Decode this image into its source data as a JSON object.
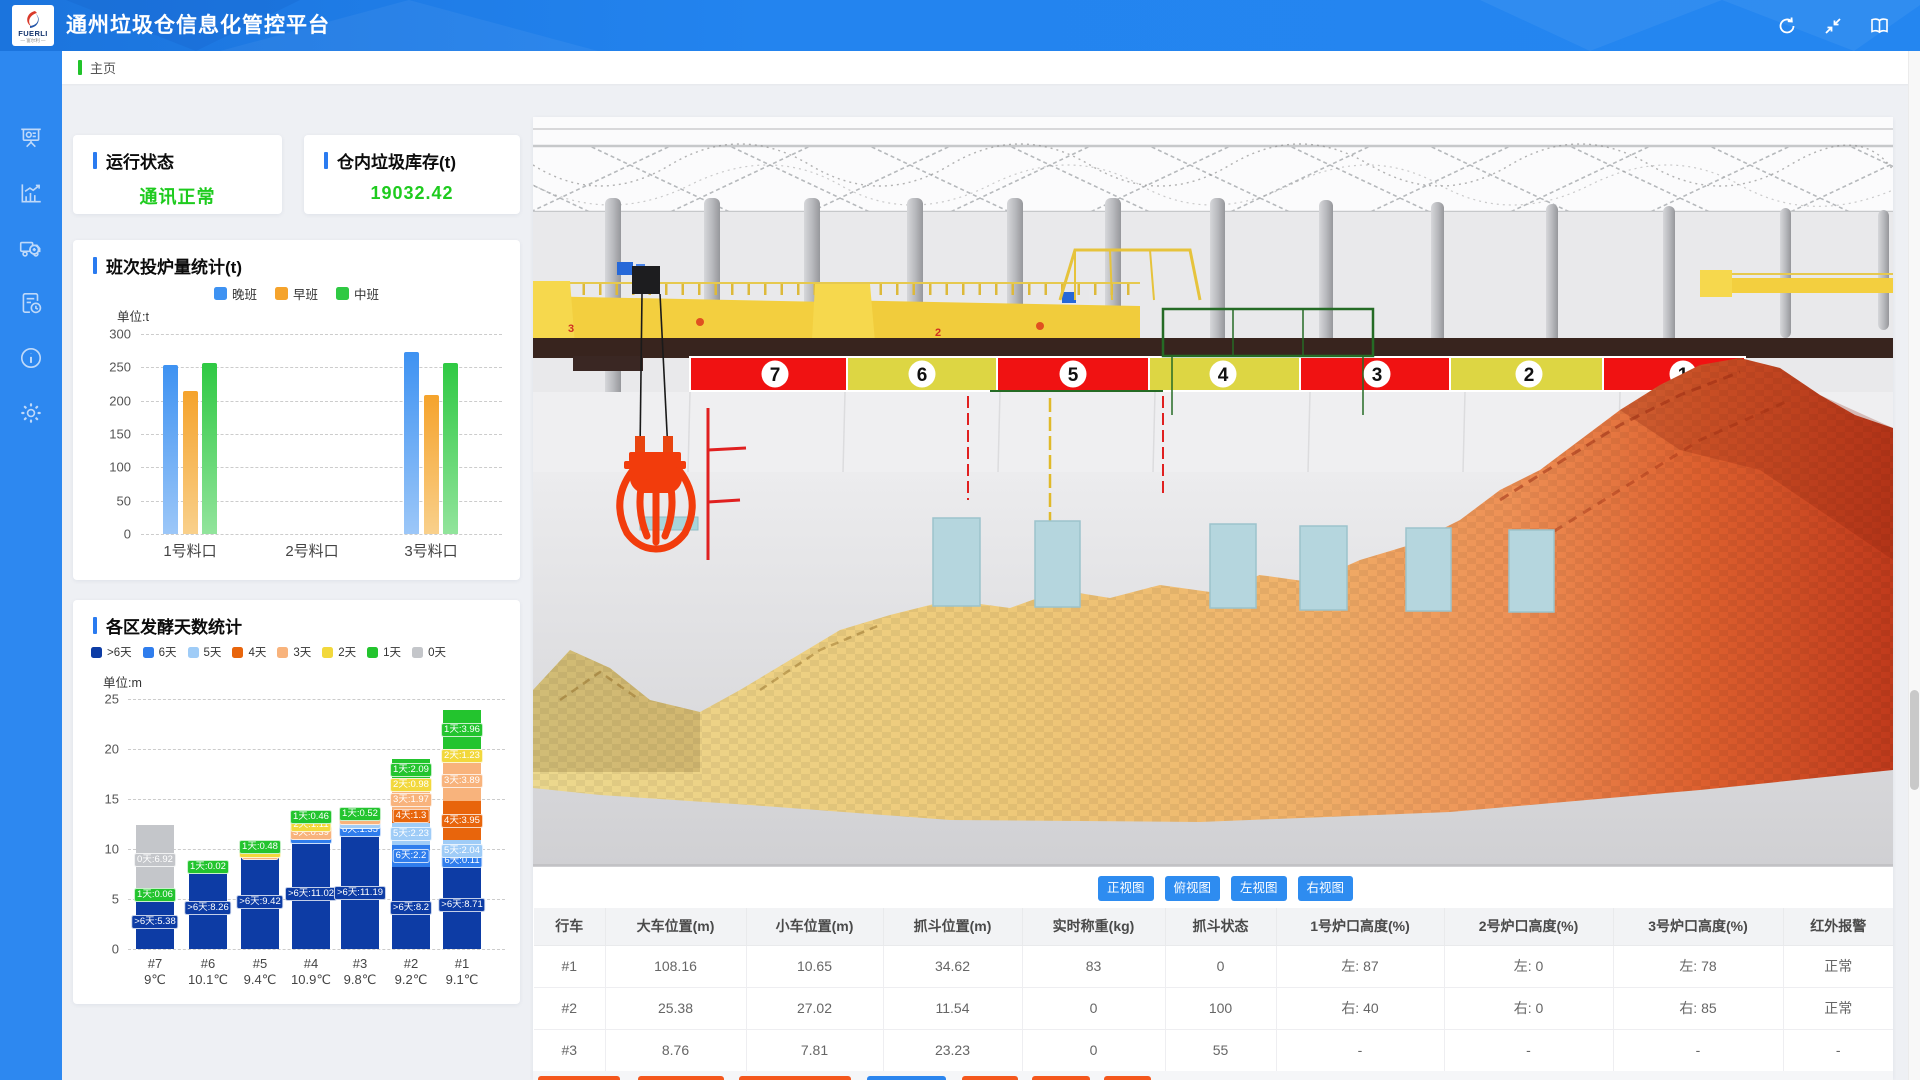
{
  "header": {
    "title": "通州垃圾仓信息化管控平台",
    "logo_text": "FUERLI",
    "icons": [
      "refresh-icon",
      "fit-screen-icon",
      "manual-icon"
    ]
  },
  "breadcrumb": "主页",
  "sidebar": {
    "items": [
      "dashboard",
      "statistics",
      "truck",
      "report",
      "info",
      "settings"
    ]
  },
  "status_cards": [
    {
      "title": "运行状态",
      "value": "通讯正常"
    },
    {
      "title": "仓内垃圾库存(t)",
      "value": "19032.42"
    }
  ],
  "chart_data": [
    {
      "type": "bar",
      "title": "班次投炉量统计(t)",
      "unit_label": "单位:t",
      "categories": [
        "1号料口",
        "2号料口",
        "3号料口"
      ],
      "series": [
        {
          "name": "晚班",
          "color": "#3e92f2",
          "color2": "#9cc7f8",
          "values": [
            253,
            0,
            273
          ]
        },
        {
          "name": "早班",
          "color": "#f5a32c",
          "color2": "#f9d08b",
          "values": [
            215,
            0,
            208
          ]
        },
        {
          "name": "中班",
          "color": "#2fc943",
          "color2": "#92e49c",
          "values": [
            257,
            0,
            256
          ]
        }
      ],
      "ylim": [
        0,
        300
      ],
      "yticks": [
        0,
        50,
        100,
        150,
        200,
        250,
        300
      ]
    },
    {
      "type": "stacked-bar",
      "title": "各区发酵天数统计",
      "unit_label": "单位:m",
      "ylim": [
        0,
        25
      ],
      "yticks": [
        0,
        5,
        10,
        15,
        20,
        25
      ],
      "legend": [
        ">6天",
        "6天",
        "5天",
        "4天",
        "3天",
        "2天",
        "1天",
        "0天"
      ],
      "colors": {
        ">6天": "#0d3ca5",
        "6天": "#2f7ded",
        "5天": "#9fccf7",
        "4天": "#e8650c",
        "3天": "#f8b37c",
        "2天": "#f2d83c",
        "1天": "#23c42e",
        "0天": "#c4c6ca"
      },
      "bars": [
        {
          "id": "#7",
          "temp": "9℃",
          "segments": [
            {
              "k": ">6天",
              "v": 5.38
            },
            {
              "k": "1天",
              "v": 0.06
            },
            {
              "k": "0天",
              "v": 6.92
            }
          ]
        },
        {
          "id": "#6",
          "temp": "10.1℃",
          "segments": [
            {
              "k": ">6天",
              "v": 8.26
            },
            {
              "k": "1天",
              "v": 0.02
            }
          ]
        },
        {
          "id": "#5",
          "temp": "9.4℃",
          "segments": [
            {
              "k": ">6天",
              "v": 9.42
            },
            {
              "k": "3天",
              "v": 0.3
            },
            {
              "k": "2天",
              "v": 0.25
            },
            {
              "k": "1天",
              "v": 0.48
            }
          ]
        },
        {
          "id": "#4",
          "temp": "10.9℃",
          "segments": [
            {
              "k": ">6天",
              "v": 11.02
            },
            {
              "k": "6天",
              "v": 0.42
            },
            {
              "k": "3天",
              "v": 0.39
            },
            {
              "k": "2天",
              "v": 1.11
            },
            {
              "k": "1天",
              "v": 0.46
            }
          ]
        },
        {
          "id": "#3",
          "temp": "9.8℃",
          "segments": [
            {
              "k": ">6天",
              "v": 11.19
            },
            {
              "k": "6天",
              "v": 1.35
            },
            {
              "k": "5天",
              "v": 0.38
            },
            {
              "k": "3天",
              "v": 0.35
            },
            {
              "k": "1天",
              "v": 0.52
            }
          ]
        },
        {
          "id": "#2",
          "temp": "9.2℃",
          "segments": [
            {
              "k": ">6天",
              "v": 8.2
            },
            {
              "k": "6天",
              "v": 2.2
            },
            {
              "k": "5天",
              "v": 2.23
            },
            {
              "k": "4天",
              "v": 1.3
            },
            {
              "k": "3天",
              "v": 1.97
            },
            {
              "k": "2天",
              "v": 0.98
            },
            {
              "k": "1天",
              "v": 2.09
            }
          ]
        },
        {
          "id": "#1",
          "temp": "9.1℃",
          "segments": [
            {
              "k": ">6天",
              "v": 8.71
            },
            {
              "k": "6天",
              "v": 0.11
            },
            {
              "k": "5天",
              "v": 2.04
            },
            {
              "k": "4天",
              "v": 3.95
            },
            {
              "k": "3天",
              "v": 3.89
            },
            {
              "k": "2天",
              "v": 1.23
            },
            {
              "k": "1天",
              "v": 3.96
            }
          ]
        }
      ]
    }
  ],
  "scene": {
    "bay_numbers": [
      "7",
      "6",
      "5",
      "4",
      "3",
      "2",
      "1"
    ],
    "view_buttons": [
      "正视图",
      "俯视图",
      "左视图",
      "右视图"
    ]
  },
  "table": {
    "columns": [
      "行车",
      "大车位置(m)",
      "小车位置(m)",
      "抓斗位置(m)",
      "实时称重(kg)",
      "抓斗状态",
      "1号炉口高度(%)",
      "2号炉口高度(%)",
      "3号炉口高度(%)",
      "红外报警"
    ],
    "rows": [
      [
        "#1",
        "108.16",
        "10.65",
        "34.62",
        "83",
        "0",
        "左: 87",
        "左: 0",
        "左: 78",
        "正常"
      ],
      [
        "#2",
        "25.38",
        "27.02",
        "11.54",
        "0",
        "100",
        "右: 40",
        "右: 0",
        "右: 85",
        "正常"
      ],
      [
        "#3",
        "8.76",
        "7.81",
        "23.23",
        "0",
        "55",
        "-",
        "-",
        "-",
        "-"
      ]
    ]
  },
  "footer_buttons": {
    "colors": [
      "#f4571c",
      "#f4571c",
      "#f4571c",
      "#2b85ee",
      "#f4571c",
      "#f4571c",
      "#f4571c"
    ]
  },
  "colors": {
    "accent_blue": "#2a7bf0",
    "ok_green": "#1ecb1e",
    "header_blue": "#2384ef",
    "sidebar_blue": "#2d88f0"
  }
}
